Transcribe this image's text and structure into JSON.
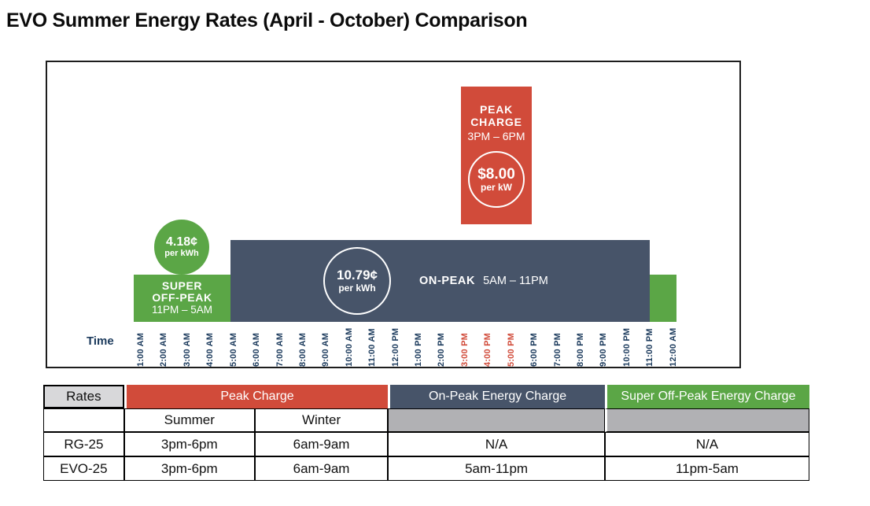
{
  "title": "EVO Summer Energy Rates (April - October) Comparison",
  "colors": {
    "red": "#D14B3A",
    "slate": "#475469",
    "green": "#5BA646",
    "navy": "#1B3A5C",
    "gray_cell": "#B1B1B4",
    "rates_header_gray": "#D8D8DA"
  },
  "chart": {
    "time_axis_label": "Time",
    "peak_box": {
      "title_line1": "PEAK",
      "title_line2": "CHARGE",
      "hours": "3PM – 6PM",
      "price": "$8.00",
      "price_unit": "per kW"
    },
    "super_off_peak": {
      "rate": "4.18¢",
      "rate_unit": "per kWh",
      "label_line1": "SUPER",
      "label_line2": "OFF-PEAK",
      "hours": "11PM – 5AM"
    },
    "on_peak": {
      "rate": "10.79¢",
      "rate_unit": "per kWh",
      "label": "ON-PEAK",
      "hours": "5AM – 11PM"
    }
  },
  "chart_data": {
    "type": "bar",
    "title": "EVO Summer Energy Rates (April - October) Comparison",
    "xlabel": "Time",
    "grid": false,
    "legend_position": "none",
    "x_ticks": [
      "1:00 AM",
      "2:00 AM",
      "3:00 AM",
      "4:00 AM",
      "5:00 AM",
      "6:00 AM",
      "7:00 AM",
      "8:00 AM",
      "9:00 AM",
      "10:00 AM",
      "11:00 AM",
      "12:00 PM",
      "1:00 PM",
      "2:00 PM",
      "3:00 PM",
      "4:00 PM",
      "5:00 PM",
      "6:00 PM",
      "7:00 PM",
      "8:00 PM",
      "9:00 PM",
      "10:00 PM",
      "11:00 PM",
      "12:00 AM"
    ],
    "peak_hour_ticks": [
      "3:00 PM",
      "4:00 PM",
      "5:00 PM"
    ],
    "segments": [
      {
        "name": "SUPER OFF-PEAK",
        "hours": "11PM – 5AM",
        "start_tick": "11:00 PM",
        "end_tick": "5:00 AM",
        "rate_value": 4.18,
        "unit": "cents per kWh",
        "color": "#5BA646",
        "relative_bar_height": "low"
      },
      {
        "name": "ON-PEAK",
        "hours": "5AM – 11PM",
        "start_tick": "5:00 AM",
        "end_tick": "11:00 PM",
        "rate_value": 10.79,
        "unit": "cents per kWh",
        "color": "#475469",
        "relative_bar_height": "medium"
      },
      {
        "name": "PEAK CHARGE",
        "hours": "3PM – 6PM",
        "start_tick": "3:00 PM",
        "end_tick": "6:00 PM",
        "rate_value": 8.0,
        "unit": "dollars per kW",
        "color": "#D14B3A",
        "relative_bar_height": "high"
      }
    ]
  },
  "table": {
    "header": [
      "Rates",
      "Peak Charge",
      "On-Peak Energy Charge",
      "Super Off-Peak Energy Charge"
    ],
    "subheader": [
      "",
      "Summer",
      "Winter",
      "",
      ""
    ],
    "rows": [
      {
        "rate": "RG-25",
        "peak_summer": "3pm-6pm",
        "peak_winter": "6am-9am",
        "on_peak": "N/A",
        "super_off_peak": "N/A"
      },
      {
        "rate": "EVO-25",
        "peak_summer": "3pm-6pm",
        "peak_winter": "6am-9am",
        "on_peak": "5am-11pm",
        "super_off_peak": "11pm-5am"
      }
    ]
  }
}
